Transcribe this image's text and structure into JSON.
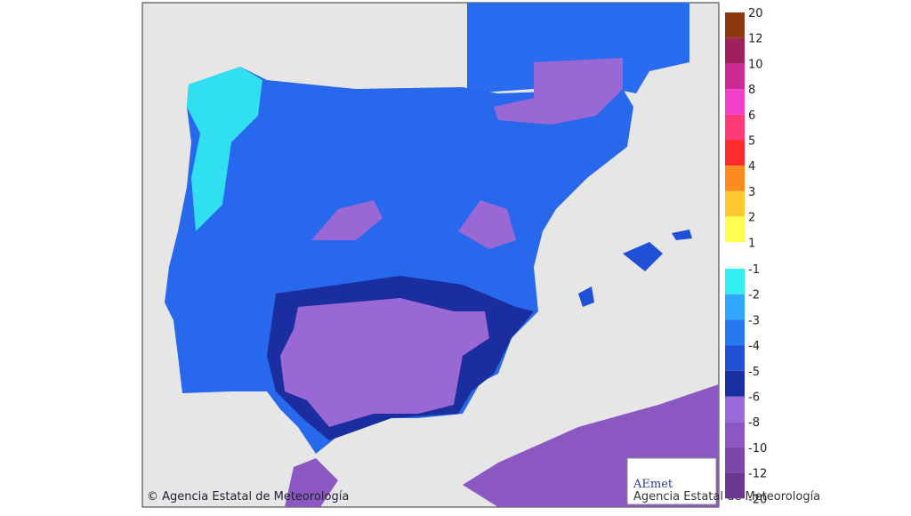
{
  "map": {
    "copyright": "© Agencia Estatal de Meteorología",
    "logo": {
      "name": "AEmet",
      "subtitle": "Agencia Estatal de Meteorología"
    }
  },
  "legend": {
    "positive": {
      "labels": [
        "20",
        "12",
        "10",
        "8",
        "6",
        "5",
        "4",
        "3",
        "2",
        "1"
      ],
      "colors": [
        "#8b3a10",
        "#a0205e",
        "#cc2a94",
        "#f040c8",
        "#ff3a78",
        "#ff2a2a",
        "#ff8a20",
        "#ffc830",
        "#ffff50"
      ]
    },
    "negative": {
      "labels": [
        "-1",
        "-2",
        "-3",
        "-4",
        "-5",
        "-6",
        "-8",
        "-10",
        "-12",
        "-20"
      ],
      "colors": [
        "#30f0f0",
        "#30a8ff",
        "#2878f0",
        "#2050d8",
        "#1830a0",
        "#9a6ad8",
        "#8a58c0",
        "#7a48a8",
        "#6a3890"
      ]
    }
  }
}
